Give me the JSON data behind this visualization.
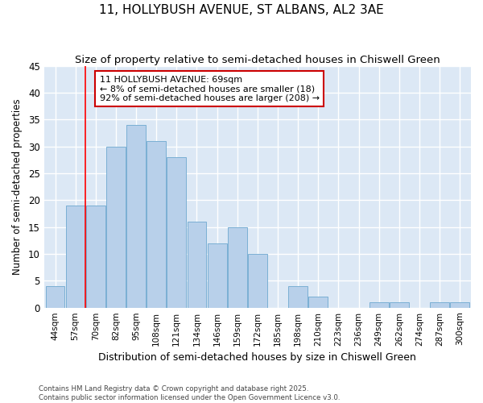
{
  "title": "11, HOLLYBUSH AVENUE, ST ALBANS, AL2 3AE",
  "subtitle": "Size of property relative to semi-detached houses in Chiswell Green",
  "xlabel": "Distribution of semi-detached houses by size in Chiswell Green",
  "ylabel": "Number of semi-detached properties",
  "footer": "Contains HM Land Registry data © Crown copyright and database right 2025.\nContains public sector information licensed under the Open Government Licence v3.0.",
  "categories": [
    "44sqm",
    "57sqm",
    "70sqm",
    "82sqm",
    "95sqm",
    "108sqm",
    "121sqm",
    "134sqm",
    "146sqm",
    "159sqm",
    "172sqm",
    "185sqm",
    "198sqm",
    "210sqm",
    "223sqm",
    "236sqm",
    "249sqm",
    "262sqm",
    "274sqm",
    "287sqm",
    "300sqm"
  ],
  "values": [
    4,
    19,
    19,
    30,
    34,
    31,
    28,
    16,
    12,
    15,
    10,
    0,
    4,
    2,
    0,
    0,
    1,
    1,
    0,
    1,
    1
  ],
  "bar_color": "#b8d0ea",
  "bar_edge_color": "#7aafd4",
  "plot_bg_color": "#dce8f5",
  "fig_bg_color": "#ffffff",
  "grid_color": "#ffffff",
  "red_line_x": 1.5,
  "annotation_text": "11 HOLLYBUSH AVENUE: 69sqm\n← 8% of semi-detached houses are smaller (18)\n92% of semi-detached houses are larger (208) →",
  "annotation_box_facecolor": "#ffffff",
  "annotation_box_edgecolor": "#cc0000",
  "ylim": [
    0,
    45
  ],
  "yticks": [
    0,
    5,
    10,
    15,
    20,
    25,
    30,
    35,
    40,
    45
  ]
}
